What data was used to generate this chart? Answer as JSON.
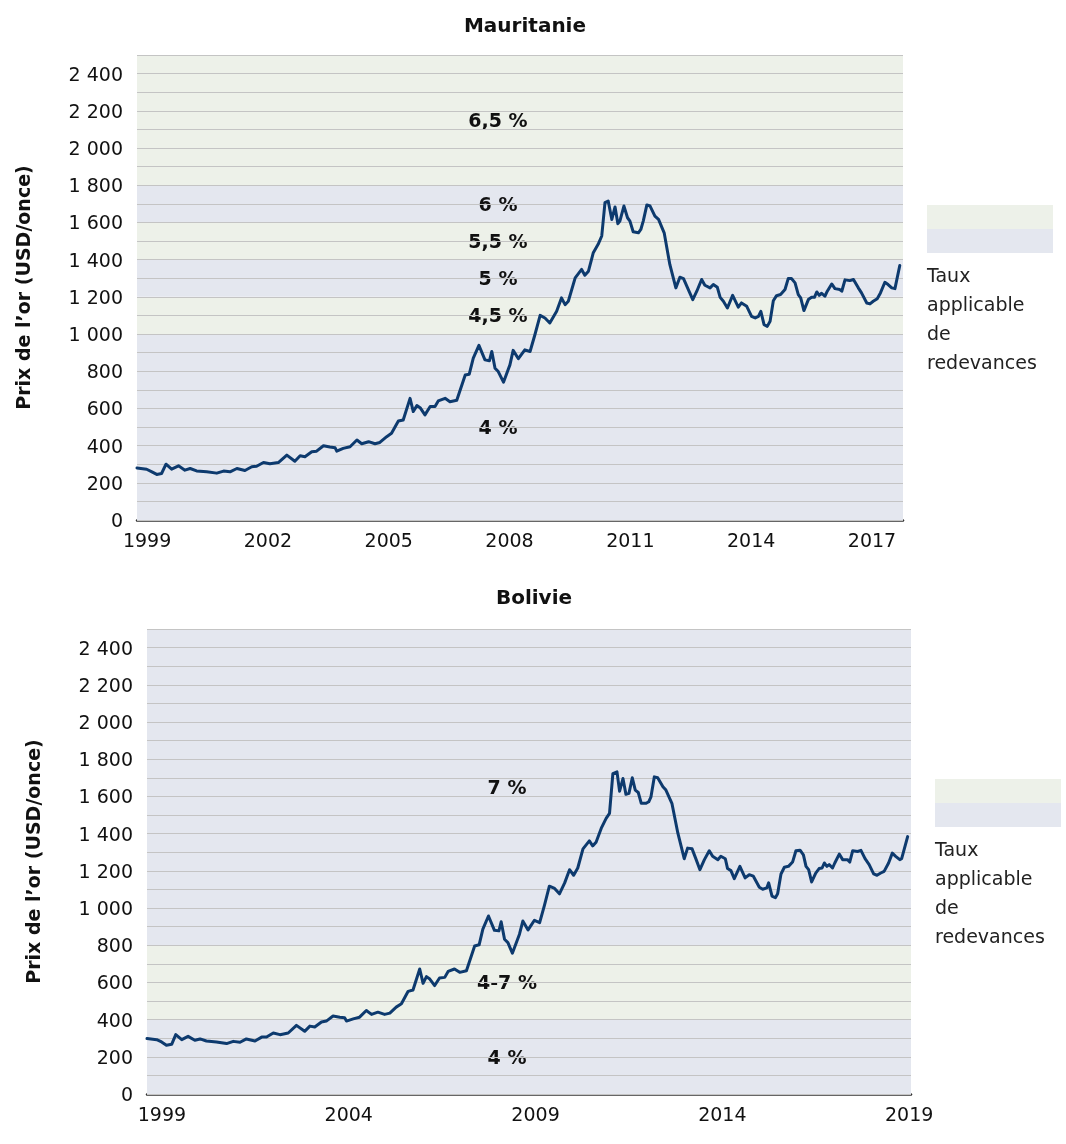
{
  "chart_data": [
    {
      "type": "line",
      "title": "Mauritanie",
      "ylabel": "Prix de l’or (USD/once)",
      "legend_title": "Taux applicable de redevances",
      "legend": "right",
      "grid": "y",
      "marker": "none",
      "xlim": [
        1998.75,
        2017.77
      ],
      "xticks": [
        1999,
        2002,
        2005,
        2008,
        2011,
        2014,
        2017
      ],
      "ylim": [
        0,
        2500
      ],
      "yticks": [
        0,
        {
          "value": 100,
          "label": null
        },
        200,
        {
          "value": 300,
          "label": null
        },
        400,
        {
          "value": 500,
          "label": null
        },
        600,
        {
          "value": 700,
          "label": null
        },
        800,
        {
          "value": 900,
          "label": null
        },
        {
          "value": 1000,
          "label": "1 000"
        },
        {
          "value": 1100,
          "label": null
        },
        {
          "value": 1200,
          "label": "1 200"
        },
        {
          "value": 1300,
          "label": null
        },
        {
          "value": 1400,
          "label": "1 400"
        },
        {
          "value": 1500,
          "label": null
        },
        {
          "value": 1600,
          "label": "1 600"
        },
        {
          "value": 1700,
          "label": null
        },
        {
          "value": 1800,
          "label": "1 800"
        },
        {
          "value": 1900,
          "label": null
        },
        {
          "value": 2000,
          "label": "2 000"
        },
        {
          "value": 2100,
          "label": null
        },
        {
          "value": 2200,
          "label": "2 200"
        },
        {
          "value": 2300,
          "label": null
        },
        {
          "value": 2400,
          "label": "2 400"
        },
        {
          "value": 2500,
          "label": null
        }
      ],
      "bands": [
        {
          "axis": "y",
          "from": 0,
          "to": 1000,
          "label": "4 %",
          "color": "#e4e7ef"
        },
        {
          "axis": "y",
          "from": 1000,
          "to": 1200,
          "label": "4,5 %",
          "color": "#edf1e9"
        },
        {
          "axis": "y",
          "from": 1200,
          "to": 1400,
          "label": "5 %",
          "color": "#e4e7ef"
        },
        {
          "axis": "y",
          "from": 1400,
          "to": 1600,
          "label": "5,5 %",
          "color": "#edf1e9"
        },
        {
          "axis": "y",
          "from": 1600,
          "to": 1800,
          "label": "6 %",
          "color": "#e4e7ef"
        },
        {
          "axis": "y",
          "from": 1800,
          "to": 2500,
          "label": "6,5 %",
          "color": "#edf1e9"
        }
      ],
      "series": [
        {
          "color": "#0d3a6e",
          "x": [
            1998.75,
            1998.99,
            1999.12,
            1999.24,
            1999.36,
            1999.47,
            1999.61,
            1999.78,
            1999.94,
            2000.07,
            2000.23,
            2000.48,
            2000.73,
            2000.9,
            2001.06,
            2001.23,
            2001.43,
            2001.6,
            2001.72,
            2001.89,
            2002.05,
            2002.26,
            2002.47,
            2002.67,
            2002.8,
            2002.92,
            2003.09,
            2003.21,
            2003.38,
            2003.54,
            2003.67,
            2003.71,
            2003.87,
            2004.04,
            2004.21,
            2004.33,
            2004.5,
            2004.66,
            2004.78,
            2004.95,
            2005.07,
            2005.24,
            2005.36,
            2005.53,
            2005.61,
            2005.7,
            2005.78,
            2005.9,
            2006.03,
            2006.15,
            2006.23,
            2006.4,
            2006.52,
            2006.69,
            2006.9,
            2007.0,
            2007.1,
            2007.24,
            2007.39,
            2007.5,
            2007.56,
            2007.64,
            2007.72,
            2007.85,
            2008.01,
            2008.09,
            2008.22,
            2008.38,
            2008.51,
            2008.63,
            2008.76,
            2008.88,
            2009.0,
            2009.17,
            2009.29,
            2009.38,
            2009.46,
            2009.63,
            2009.79,
            2009.87,
            2009.96,
            2010.08,
            2010.2,
            2010.29,
            2010.37,
            2010.45,
            2010.54,
            2010.62,
            2010.69,
            2010.74,
            2010.84,
            2010.93,
            2010.99,
            2011.07,
            2011.2,
            2011.26,
            2011.32,
            2011.41,
            2011.49,
            2011.61,
            2011.7,
            2011.84,
            2011.98,
            2012.13,
            2012.23,
            2012.32,
            2012.44,
            2012.55,
            2012.65,
            2012.77,
            2012.85,
            2012.98,
            2013.06,
            2013.16,
            2013.23,
            2013.31,
            2013.41,
            2013.54,
            2013.68,
            2013.76,
            2013.89,
            2014.01,
            2014.1,
            2014.18,
            2014.24,
            2014.32,
            2014.4,
            2014.47,
            2014.55,
            2014.63,
            2014.73,
            2014.84,
            2014.92,
            2015.0,
            2015.09,
            2015.17,
            2015.23,
            2015.31,
            2015.42,
            2015.5,
            2015.57,
            2015.63,
            2015.69,
            2015.75,
            2015.83,
            2015.89,
            2016.0,
            2016.08,
            2016.2,
            2016.25,
            2016.33,
            2016.45,
            2016.54,
            2016.66,
            2016.74,
            2016.87,
            2016.95,
            2017.03,
            2017.13,
            2017.21,
            2017.32,
            2017.4,
            2017.49,
            2017.57,
            2017.69
          ],
          "values": [
            280,
            273,
            259,
            245,
            250,
            300,
            273,
            291,
            268,
            277,
            264,
            259,
            252,
            263,
            259,
            277,
            266,
            286,
            289,
            309,
            302,
            309,
            349,
            316,
            345,
            340,
            367,
            370,
            399,
            392,
            388,
            370,
            385,
            394,
            430,
            410,
            421,
            410,
            417,
            448,
            466,
            532,
            538,
            654,
            583,
            615,
            604,
            565,
            610,
            610,
            640,
            654,
            636,
            644,
            780,
            784,
            870,
            939,
            861,
            856,
            906,
            816,
            798,
            741,
            834,
            912,
            867,
            915,
            906,
            996,
            1100,
            1086,
            1059,
            1122,
            1194,
            1158,
            1176,
            1302,
            1347,
            1316,
            1338,
            1437,
            1482,
            1527,
            1706,
            1715,
            1616,
            1683,
            1593,
            1607,
            1688,
            1625,
            1607,
            1550,
            1544,
            1562,
            1607,
            1694,
            1688,
            1634,
            1616,
            1544,
            1374,
            1248,
            1305,
            1298,
            1239,
            1185,
            1230,
            1293,
            1262,
            1248,
            1266,
            1251,
            1197,
            1176,
            1140,
            1208,
            1144,
            1167,
            1149,
            1095,
            1086,
            1095,
            1122,
            1050,
            1041,
            1068,
            1179,
            1206,
            1212,
            1239,
            1298,
            1298,
            1275,
            1212,
            1194,
            1126,
            1185,
            1197,
            1197,
            1226,
            1208,
            1219,
            1203,
            1230,
            1269,
            1244,
            1239,
            1230,
            1291,
            1287,
            1293,
            1248,
            1221,
            1167,
            1162,
            1176,
            1190,
            1221,
            1278,
            1266,
            1248,
            1244,
            1368
          ]
        }
      ]
    },
    {
      "type": "line",
      "title": "Bolivie",
      "ylabel": "Prix de l’or (USD/once)",
      "legend_title": "Taux applicable de redevances",
      "legend": "right",
      "grid": "y",
      "marker": "none",
      "xlim": [
        1998.6,
        2019.05
      ],
      "xticks": [
        1999,
        2004,
        2009,
        2014,
        2019
      ],
      "ylim": [
        0,
        2500
      ],
      "yticks": [
        0,
        {
          "value": 100,
          "label": null
        },
        200,
        {
          "value": 300,
          "label": null
        },
        400,
        {
          "value": 500,
          "label": null
        },
        600,
        {
          "value": 700,
          "label": null
        },
        800,
        {
          "value": 900,
          "label": null
        },
        {
          "value": 1000,
          "label": "1 000"
        },
        {
          "value": 1100,
          "label": null
        },
        {
          "value": 1200,
          "label": "1 200"
        },
        {
          "value": 1300,
          "label": null
        },
        {
          "value": 1400,
          "label": "1 400"
        },
        {
          "value": 1500,
          "label": null
        },
        {
          "value": 1600,
          "label": "1 600"
        },
        {
          "value": 1700,
          "label": null
        },
        {
          "value": 1800,
          "label": "1 800"
        },
        {
          "value": 1900,
          "label": null
        },
        {
          "value": 2000,
          "label": "2 000"
        },
        {
          "value": 2100,
          "label": null
        },
        {
          "value": 2200,
          "label": "2 200"
        },
        {
          "value": 2300,
          "label": null
        },
        {
          "value": 2400,
          "label": "2 400"
        },
        {
          "value": 2500,
          "label": null
        }
      ],
      "bands": [
        {
          "axis": "y",
          "from": 0,
          "to": 400,
          "label": "4 %",
          "color": "#e4e7ef"
        },
        {
          "axis": "y",
          "from": 400,
          "to": 800,
          "label": "4-7 %",
          "color": "#edf1e9"
        },
        {
          "axis": "y",
          "from": 800,
          "to": 2500,
          "label": "7 %",
          "color": "#e4e7ef"
        }
      ],
      "series": [
        {
          "color": "#0d3a6e",
          "x": [
            1998.6,
            1998.86,
            1998.99,
            1999.12,
            1999.26,
            1999.37,
            1999.53,
            1999.7,
            1999.88,
            2000.02,
            2000.19,
            2000.46,
            2000.73,
            2000.91,
            2001.09,
            2001.26,
            2001.49,
            2001.67,
            2001.8,
            2001.98,
            2002.16,
            2002.38,
            2002.6,
            2002.82,
            2002.96,
            2003.09,
            2003.27,
            2003.4,
            2003.58,
            2003.76,
            2003.89,
            2003.94,
            2004.12,
            2004.29,
            2004.47,
            2004.61,
            2004.78,
            2004.96,
            2005.1,
            2005.27,
            2005.41,
            2005.59,
            2005.72,
            2005.9,
            2005.99,
            2006.08,
            2006.17,
            2006.3,
            2006.43,
            2006.57,
            2006.66,
            2006.83,
            2006.97,
            2007.15,
            2007.37,
            2007.49,
            2007.59,
            2007.74,
            2007.9,
            2008.02,
            2008.08,
            2008.17,
            2008.26,
            2008.38,
            2008.57,
            2008.66,
            2008.8,
            2008.97,
            2009.11,
            2009.24,
            2009.37,
            2009.51,
            2009.64,
            2009.78,
            2009.91,
            2010.02,
            2010.13,
            2010.27,
            2010.44,
            2010.53,
            2010.62,
            2010.76,
            2010.89,
            2010.98,
            2011.07,
            2011.18,
            2011.25,
            2011.34,
            2011.42,
            2011.5,
            2011.59,
            2011.67,
            2011.75,
            2011.83,
            2011.96,
            2012.03,
            2012.09,
            2012.18,
            2012.27,
            2012.41,
            2012.49,
            2012.65,
            2012.81,
            2012.98,
            2013.07,
            2013.19,
            2013.3,
            2013.4,
            2013.52,
            2013.65,
            2013.74,
            2013.88,
            2013.96,
            2014.08,
            2014.14,
            2014.23,
            2014.32,
            2014.47,
            2014.61,
            2014.72,
            2014.83,
            2014.99,
            2015.08,
            2015.19,
            2015.24,
            2015.33,
            2015.42,
            2015.48,
            2015.57,
            2015.66,
            2015.77,
            2015.88,
            2015.97,
            2016.08,
            2016.17,
            2016.24,
            2016.31,
            2016.39,
            2016.5,
            2016.59,
            2016.67,
            2016.73,
            2016.8,
            2016.86,
            2016.95,
            2017.01,
            2017.13,
            2017.22,
            2017.35,
            2017.41,
            2017.49,
            2017.62,
            2017.71,
            2017.82,
            2017.93,
            2018.05,
            2018.14,
            2018.24,
            2018.33,
            2018.45,
            2018.55,
            2018.64,
            2018.75,
            2018.8,
            2018.96
          ],
          "values": [
            298,
            292,
            280,
            262,
            267,
            319,
            292,
            310,
            289,
            296,
            285,
            280,
            271,
            283,
            278,
            296,
            285,
            306,
            306,
            328,
            319,
            328,
            369,
            337,
            365,
            360,
            387,
            392,
            419,
            413,
            410,
            392,
            404,
            413,
            449,
            428,
            440,
            428,
            435,
            467,
            485,
            552,
            559,
            672,
            595,
            631,
            618,
            583,
            624,
            627,
            659,
            672,
            654,
            663,
            796,
            802,
            886,
            957,
            880,
            877,
            926,
            832,
            814,
            757,
            859,
            930,
            882,
            934,
            921,
            1016,
            1117,
            1105,
            1076,
            1135,
            1206,
            1176,
            1215,
            1318,
            1361,
            1334,
            1354,
            1429,
            1482,
            1509,
            1723,
            1732,
            1628,
            1696,
            1611,
            1616,
            1700,
            1634,
            1621,
            1563,
            1563,
            1571,
            1598,
            1705,
            1700,
            1652,
            1634,
            1563,
            1402,
            1265,
            1322,
            1318,
            1260,
            1206,
            1260,
            1308,
            1278,
            1260,
            1278,
            1265,
            1212,
            1201,
            1158,
            1224,
            1162,
            1179,
            1171,
            1112,
            1101,
            1108,
            1135,
            1064,
            1055,
            1076,
            1183,
            1219,
            1224,
            1247,
            1308,
            1311,
            1286,
            1224,
            1206,
            1140,
            1188,
            1212,
            1215,
            1242,
            1224,
            1233,
            1215,
            1242,
            1290,
            1260,
            1260,
            1247,
            1308,
            1304,
            1310,
            1265,
            1233,
            1183,
            1176,
            1188,
            1197,
            1242,
            1295,
            1278,
            1260,
            1265,
            1384
          ]
        }
      ]
    }
  ]
}
